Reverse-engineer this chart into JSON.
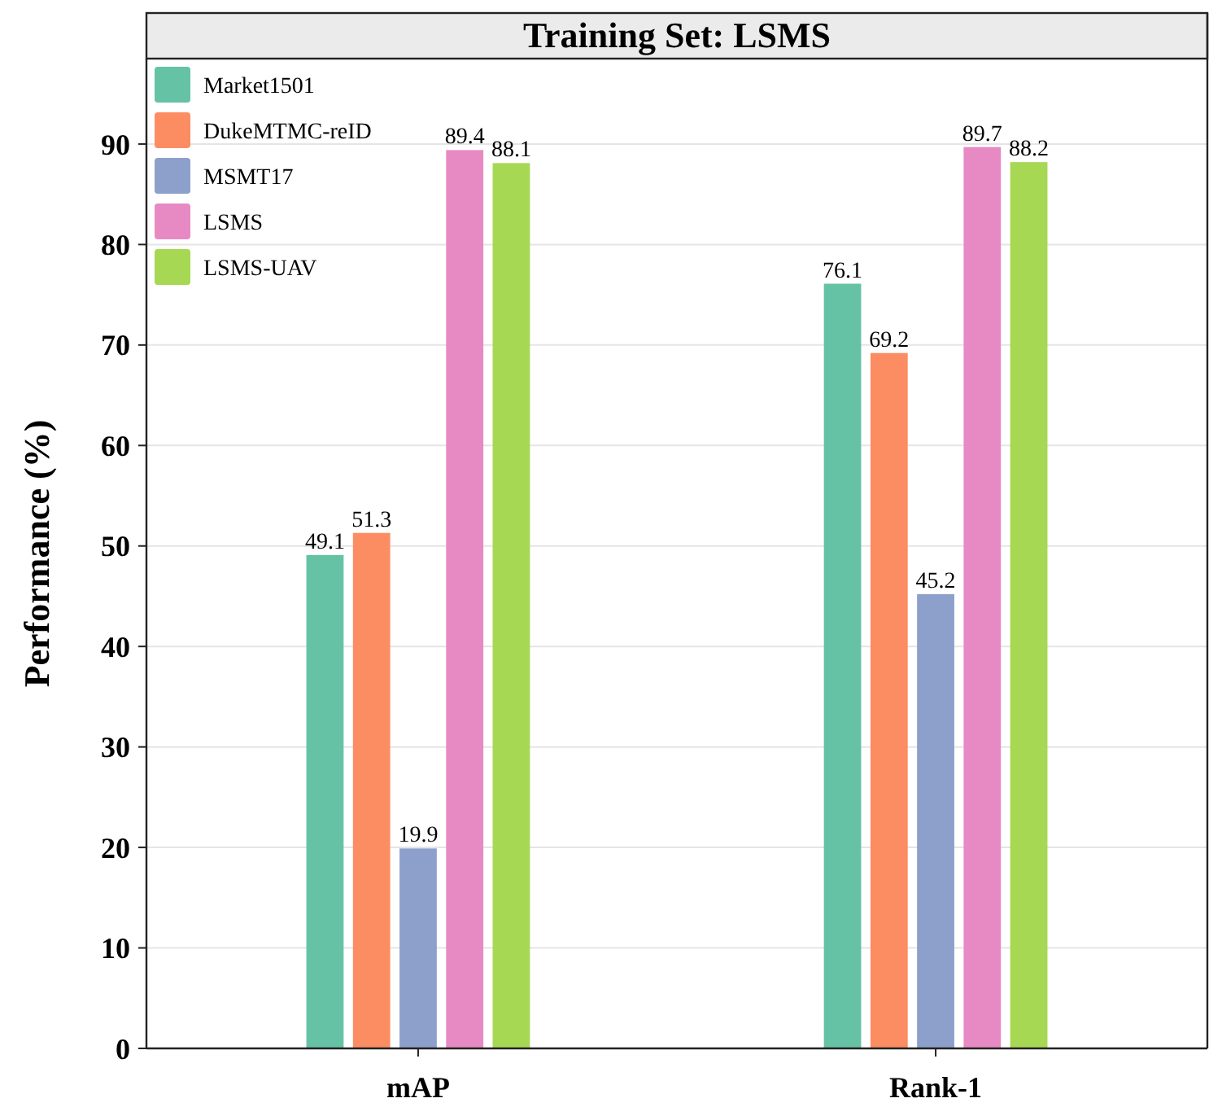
{
  "chart_data": {
    "type": "bar",
    "title": "Training Set: LSMS",
    "ylabel": "Performance (%)",
    "categories": [
      "mAP",
      "Rank-1"
    ],
    "series": [
      {
        "name": "Market1501",
        "color": "#66c2a5",
        "values": [
          49.1,
          76.1
        ]
      },
      {
        "name": "DukeMTMC-reID",
        "color": "#fc8d62",
        "values": [
          51.3,
          69.2
        ]
      },
      {
        "name": "MSMT17",
        "color": "#8da0cb",
        "values": [
          19.9,
          45.2
        ]
      },
      {
        "name": "LSMS",
        "color": "#e78ac3",
        "values": [
          89.4,
          89.7
        ]
      },
      {
        "name": "LSMS-UAV",
        "color": "#a6d854",
        "values": [
          88.1,
          88.2
        ]
      }
    ],
    "ylim": [
      0,
      98.5
    ],
    "yticks": [
      0,
      10,
      20,
      30,
      40,
      50,
      60,
      70,
      80,
      90
    ],
    "grid": "y",
    "legend": "top left",
    "data_labels": true
  }
}
